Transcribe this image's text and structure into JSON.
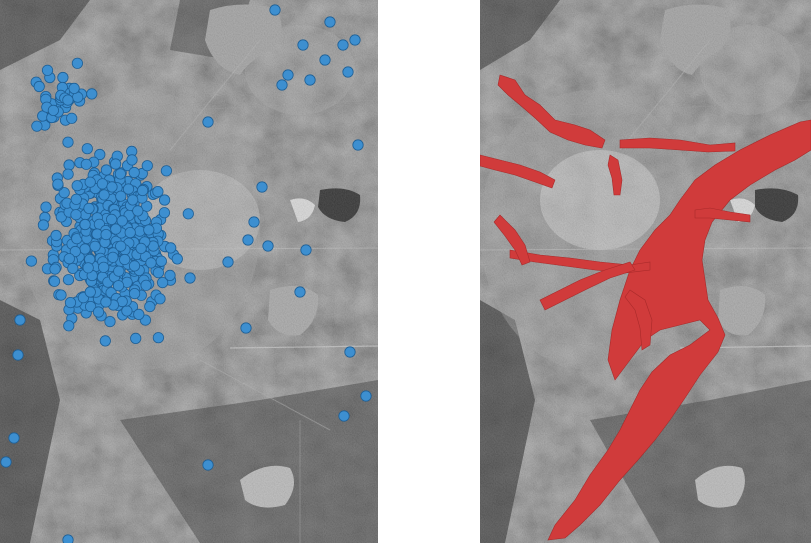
{
  "figure": {
    "panels": [
      {
        "id": "left",
        "overlay": "point-markers",
        "marker_color": "#3d8fd0",
        "marker_edge": "#1f5f95"
      },
      {
        "id": "right",
        "overlay": "flood-extent-polygons",
        "fill_color": "#d03b3b"
      }
    ],
    "base_layer": "grayscale-aerial-imagery"
  }
}
